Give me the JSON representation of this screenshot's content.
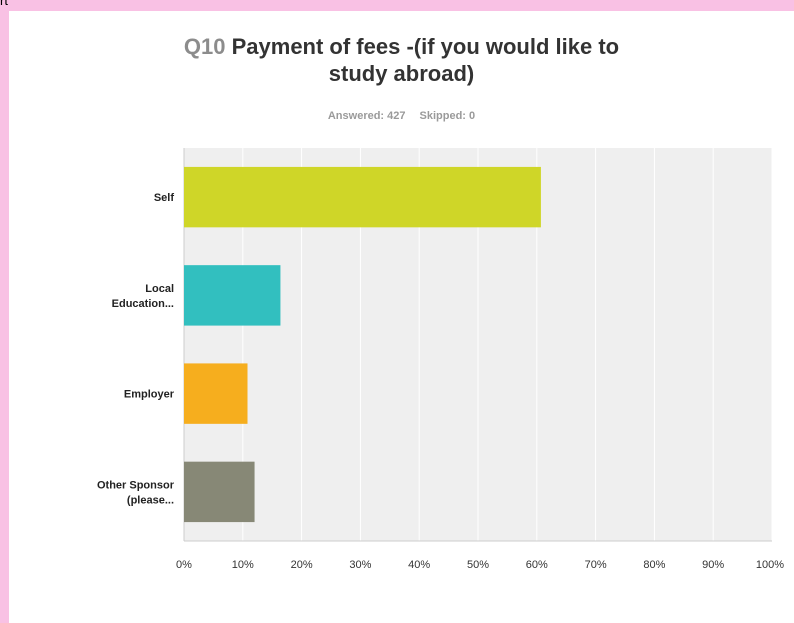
{
  "corner_text": "rt",
  "question": {
    "number": "Q10",
    "title_line1": "Payment of fees -(if you would like to",
    "title_line2": "study abroad)"
  },
  "stats": {
    "answered": "Answered: 427",
    "skipped": "Skipped: 0"
  },
  "colors": {
    "page_background": "#f9c1e4",
    "plot_background": "#efefef",
    "gridline": "#ffffff"
  },
  "chart_data": {
    "type": "bar",
    "orientation": "horizontal",
    "title": "Q10 Payment of fees -(if you would like to study abroad)",
    "categories": [
      [
        "Self"
      ],
      [
        "Local",
        "Education..."
      ],
      [
        "Employer"
      ],
      [
        "Other Sponsor",
        "(please..."
      ]
    ],
    "values": [
      60.7,
      16.4,
      10.8,
      12.0
    ],
    "colors": [
      "#cfd628",
      "#32bfbf",
      "#f6ae1e",
      "#878876"
    ],
    "xlim": [
      0,
      100
    ],
    "xticks": [
      "0%",
      "10%",
      "20%",
      "30%",
      "40%",
      "50%",
      "60%",
      "70%",
      "80%",
      "90%",
      "100%"
    ],
    "grid": true,
    "legend": "none"
  }
}
